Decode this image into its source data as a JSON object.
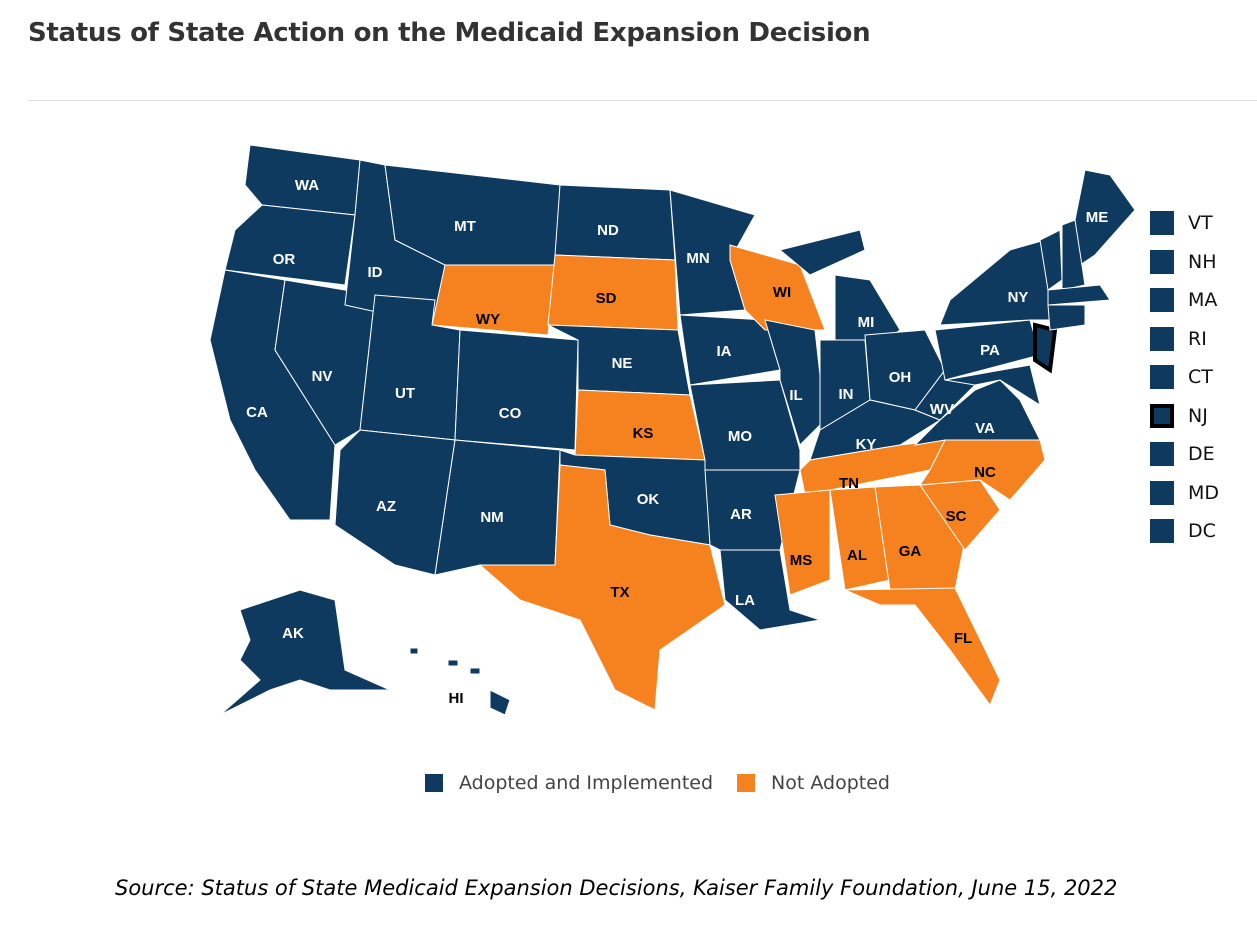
{
  "title": "Status of State Action on the Medicaid Expansion Decision",
  "colors": {
    "adopted": "#0f3a5f",
    "not_adopted": "#f5821f"
  },
  "legend": [
    {
      "label": "Adopted and Implemented",
      "status": "adopted"
    },
    {
      "label": "Not Adopted",
      "status": "not_adopted"
    }
  ],
  "small_states": [
    {
      "code": "VT"
    },
    {
      "code": "NH"
    },
    {
      "code": "MA"
    },
    {
      "code": "RI"
    },
    {
      "code": "CT"
    },
    {
      "code": "NJ",
      "highlighted": true
    },
    {
      "code": "DE"
    },
    {
      "code": "MD"
    },
    {
      "code": "DC"
    }
  ],
  "states": [
    {
      "code": "WA",
      "status": "adopted"
    },
    {
      "code": "OR",
      "status": "adopted"
    },
    {
      "code": "CA",
      "status": "adopted"
    },
    {
      "code": "NV",
      "status": "adopted"
    },
    {
      "code": "ID",
      "status": "adopted"
    },
    {
      "code": "MT",
      "status": "adopted"
    },
    {
      "code": "WY",
      "status": "not_adopted"
    },
    {
      "code": "UT",
      "status": "adopted"
    },
    {
      "code": "CO",
      "status": "adopted"
    },
    {
      "code": "AZ",
      "status": "adopted"
    },
    {
      "code": "NM",
      "status": "adopted"
    },
    {
      "code": "ND",
      "status": "adopted"
    },
    {
      "code": "SD",
      "status": "not_adopted"
    },
    {
      "code": "NE",
      "status": "adopted"
    },
    {
      "code": "KS",
      "status": "not_adopted"
    },
    {
      "code": "OK",
      "status": "adopted"
    },
    {
      "code": "TX",
      "status": "not_adopted"
    },
    {
      "code": "MN",
      "status": "adopted"
    },
    {
      "code": "IA",
      "status": "adopted"
    },
    {
      "code": "MO",
      "status": "adopted"
    },
    {
      "code": "AR",
      "status": "adopted"
    },
    {
      "code": "LA",
      "status": "adopted"
    },
    {
      "code": "WI",
      "status": "not_adopted"
    },
    {
      "code": "IL",
      "status": "adopted"
    },
    {
      "code": "MI",
      "status": "adopted"
    },
    {
      "code": "IN",
      "status": "adopted"
    },
    {
      "code": "OH",
      "status": "adopted"
    },
    {
      "code": "KY",
      "status": "adopted"
    },
    {
      "code": "TN",
      "status": "not_adopted"
    },
    {
      "code": "MS",
      "status": "not_adopted"
    },
    {
      "code": "AL",
      "status": "not_adopted"
    },
    {
      "code": "GA",
      "status": "not_adopted"
    },
    {
      "code": "FL",
      "status": "not_adopted"
    },
    {
      "code": "SC",
      "status": "not_adopted"
    },
    {
      "code": "NC",
      "status": "not_adopted"
    },
    {
      "code": "VA",
      "status": "adopted"
    },
    {
      "code": "WV",
      "status": "adopted"
    },
    {
      "code": "PA",
      "status": "adopted"
    },
    {
      "code": "NY",
      "status": "adopted"
    },
    {
      "code": "ME",
      "status": "adopted"
    },
    {
      "code": "AK",
      "status": "adopted"
    },
    {
      "code": "HI",
      "status": "adopted"
    },
    {
      "code": "NJ",
      "status": "adopted",
      "nolabel": true
    },
    {
      "code": "MD",
      "status": "adopted",
      "nolabel": true
    },
    {
      "code": "VT",
      "status": "adopted",
      "nolabel": true
    },
    {
      "code": "NH",
      "status": "adopted",
      "nolabel": true
    },
    {
      "code": "MA",
      "status": "adopted",
      "nolabel": true
    },
    {
      "code": "CT",
      "status": "adopted",
      "nolabel": true
    }
  ],
  "source": "Source: Status of State Medicaid Expansion Decisions, Kaiser Family Foundation, June 15, 2022"
}
